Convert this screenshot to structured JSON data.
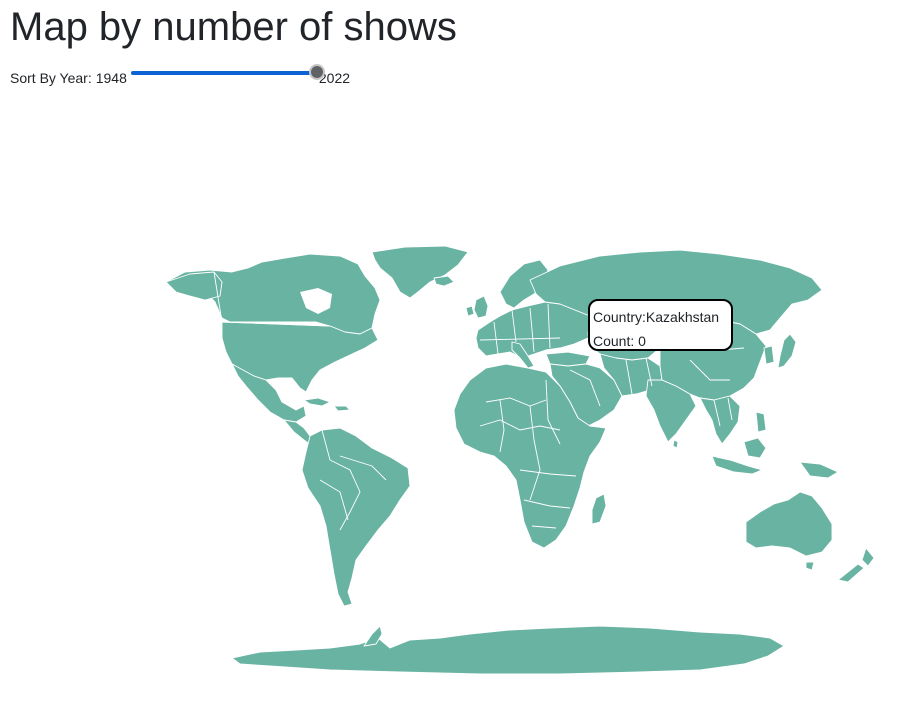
{
  "page": {
    "title": "Map by number of shows"
  },
  "slider": {
    "label": "Sort By Year:",
    "min": "1948",
    "max": "2022",
    "value_fraction": 1.0
  },
  "tooltip": {
    "country_text": "Country:Kazakhstan",
    "count_text": "Count: 0"
  },
  "map": {
    "fill_color": "#69b3a2",
    "border_color": "#ffffff"
  }
}
